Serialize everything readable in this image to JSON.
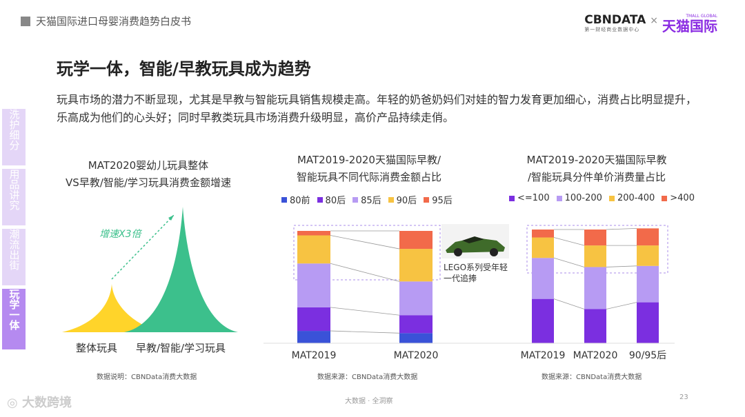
{
  "header": {
    "title": "天猫国际进口母婴消费趋势白皮书"
  },
  "logos": {
    "cbn": "CBNDATA",
    "cbn_sub": "第一财经商业数据中心",
    "times": "×",
    "tmall": "天猫国际",
    "tmall_en": "TMALL GLOBAL"
  },
  "main": {
    "title": "玩学一体，智能/早教玩具成为趋势",
    "description": "玩具市场的潜力不断显现，尤其是早教与智能玩具销售规模走高。年轻的奶爸奶妈们对娃的智力发育更加细心，消费占比明显提升，乐高成为他们的心头好；同时早教类玩具市场消费升级明显，高价产品持续走俏。"
  },
  "sidebar": {
    "items": [
      {
        "label": "洗护细分",
        "active": false
      },
      {
        "label": "用品讲究",
        "active": false
      },
      {
        "label": "潮流出街",
        "active": false
      },
      {
        "label": "玩学一体",
        "active": true
      }
    ]
  },
  "chart_data": [
    {
      "type": "area",
      "title_line1": "MAT2020婴幼儿玩具整体",
      "title_line2": "VS早教/智能/学习玩具消费金额增速",
      "categories": [
        "整体玩具",
        "早教/智能/学习玩具"
      ],
      "annotation": "增速X3倍",
      "colors": [
        "#FFD42A",
        "#3CC08C"
      ]
    },
    {
      "type": "bar",
      "stacked": true,
      "title_line1": "MAT2019-2020天猫国际早教/",
      "title_line2": "智能玩具不同代际消费金额占比",
      "categories": [
        "MAT2019",
        "MAT2020"
      ],
      "series": [
        {
          "name": "80前",
          "color": "#3A52D8",
          "values": [
            11,
            9
          ]
        },
        {
          "name": "80后",
          "color": "#7B2FE0",
          "values": [
            21,
            16
          ]
        },
        {
          "name": "85后",
          "color": "#B79BF3",
          "values": [
            39,
            30
          ]
        },
        {
          "name": "90后",
          "color": "#F7C342",
          "values": [
            25,
            29
          ]
        },
        {
          "name": "95后",
          "color": "#F26A4A",
          "values": [
            4,
            16
          ]
        }
      ],
      "annotation": "LEGO系列受年轻一代追捧"
    },
    {
      "type": "bar",
      "stacked": true,
      "title_line1": "MAT2019-2020天猫国际早教",
      "title_line2": "/智能玩具分件单价消费量占比",
      "categories": [
        "MAT2019",
        "MAT2020",
        "90/95后"
      ],
      "series": [
        {
          "name": "<=100",
          "color": "#7B2FE0",
          "values": [
            39,
            30,
            36
          ]
        },
        {
          "name": "100-200",
          "color": "#B79BF3",
          "values": [
            36,
            37,
            32
          ]
        },
        {
          "name": "200-400",
          "color": "#F7C342",
          "values": [
            18,
            19,
            18
          ]
        },
        {
          "name": ">400",
          "color": "#F26A4A",
          "values": [
            7,
            14,
            15
          ]
        }
      ]
    }
  ],
  "sources": [
    "数据说明：CBNData消费大数据",
    "数据来源：CBNData消费大数据",
    "数据来源：CBNData消费大数据"
  ],
  "footer": {
    "center": "大数据 · 全洞察",
    "page": "23",
    "watermark": "大数跨境"
  }
}
